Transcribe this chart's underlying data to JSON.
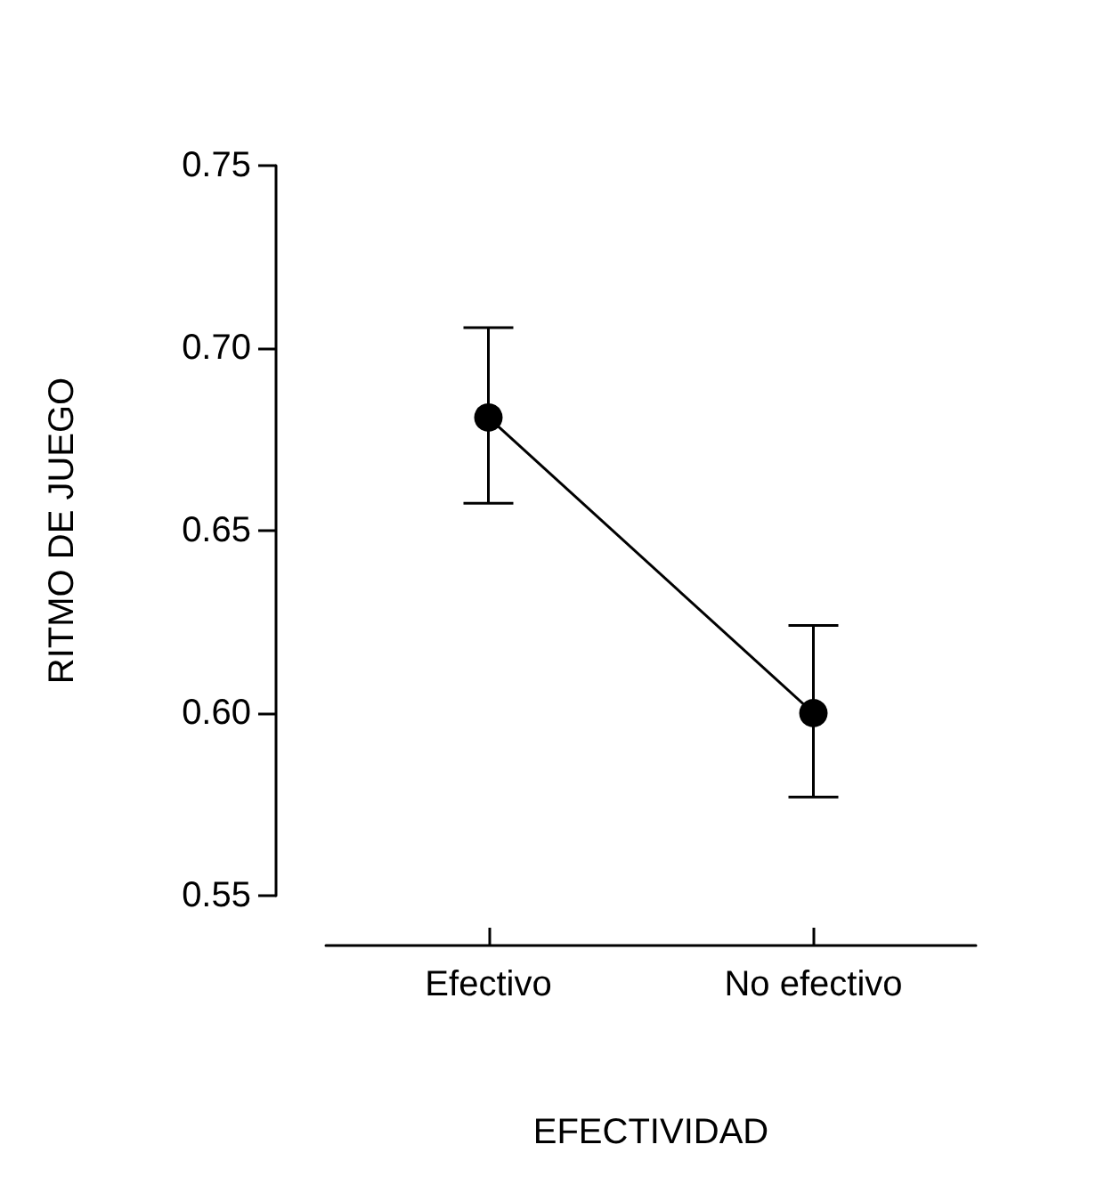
{
  "chart_data": {
    "type": "line",
    "xlabel": "EFECTIVIDAD",
    "ylabel": "RITMO DE JUEGO",
    "categories": [
      "Efectivo",
      "No efectivo"
    ],
    "series": [
      {
        "color": "#000000",
        "values": [
          0.681,
          0.6
        ],
        "errors": [
          [
            0.6575,
            0.7056
          ],
          [
            0.577,
            0.624
          ]
        ]
      }
    ],
    "ylim": [
      0.55,
      0.75
    ],
    "yticks": [
      0.55,
      {
        "value": 0.6,
        "label": "0.60"
      },
      0.65,
      {
        "value": 0.7,
        "label": "0.70"
      },
      0.75
    ],
    "grid": false,
    "marker": "circle",
    "line_style": "solid"
  }
}
